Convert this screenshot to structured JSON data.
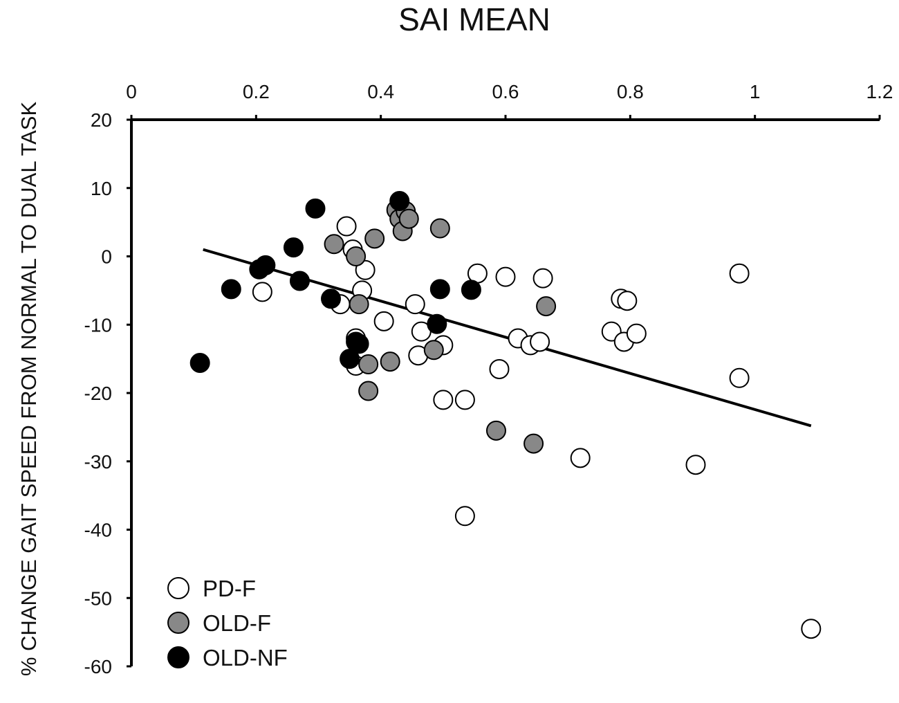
{
  "chart_data": {
    "type": "scatter",
    "title": "SAI MEAN",
    "xlabel": "",
    "ylabel": "% CHANGE GAIT SPEED FROM NORMAL  TO DUAL TASK",
    "xlim": [
      0,
      1.2
    ],
    "ylim": [
      -60,
      20
    ],
    "x_ticks": [
      "0",
      "0.2",
      "0.4",
      "0.6",
      "0.8",
      "1",
      "1.2"
    ],
    "y_ticks": [
      "20",
      "10",
      "0",
      "-10",
      "-20",
      "-30",
      "-40",
      "-50",
      "-60"
    ],
    "x_axis_position": "top",
    "series": [
      {
        "name": "PD-F",
        "color": "#ffffff",
        "points": [
          [
            0.21,
            -5.2
          ],
          [
            0.335,
            -7
          ],
          [
            0.345,
            4.4
          ],
          [
            0.355,
            1
          ],
          [
            0.36,
            -12
          ],
          [
            0.36,
            -16
          ],
          [
            0.37,
            -5
          ],
          [
            0.375,
            -2
          ],
          [
            0.405,
            -9.5
          ],
          [
            0.455,
            -7
          ],
          [
            0.46,
            -14.5
          ],
          [
            0.465,
            -11
          ],
          [
            0.5,
            -13
          ],
          [
            0.5,
            -21
          ],
          [
            0.535,
            -38
          ],
          [
            0.535,
            -21
          ],
          [
            0.555,
            -2.5
          ],
          [
            0.59,
            -16.5
          ],
          [
            0.6,
            -3
          ],
          [
            0.62,
            -12
          ],
          [
            0.64,
            -13
          ],
          [
            0.655,
            -12.5
          ],
          [
            0.66,
            -3.2
          ],
          [
            0.72,
            -29.5
          ],
          [
            0.77,
            -11
          ],
          [
            0.785,
            -6.2
          ],
          [
            0.79,
            -12.5
          ],
          [
            0.795,
            -6.5
          ],
          [
            0.81,
            -11.3
          ],
          [
            0.905,
            -30.5
          ],
          [
            0.975,
            -2.5
          ],
          [
            0.975,
            -17.8
          ],
          [
            1.09,
            -54.5
          ]
        ]
      },
      {
        "name": "OLD-F",
        "color": "#888888",
        "points": [
          [
            0.325,
            1.8
          ],
          [
            0.36,
            0
          ],
          [
            0.365,
            -7
          ],
          [
            0.38,
            -15.8
          ],
          [
            0.38,
            -19.7
          ],
          [
            0.39,
            2.6
          ],
          [
            0.415,
            -15.4
          ],
          [
            0.425,
            6.8
          ],
          [
            0.43,
            5.5
          ],
          [
            0.435,
            3.7
          ],
          [
            0.44,
            6.6
          ],
          [
            0.445,
            5.5
          ],
          [
            0.485,
            -13.7
          ],
          [
            0.495,
            4.1
          ],
          [
            0.585,
            -25.5
          ],
          [
            0.645,
            -27.4
          ],
          [
            0.665,
            -7.3
          ]
        ]
      },
      {
        "name": "OLD-NF",
        "color": "#000000",
        "points": [
          [
            0.11,
            -15.6
          ],
          [
            0.16,
            -4.8
          ],
          [
            0.205,
            -1.9
          ],
          [
            0.215,
            -1.3
          ],
          [
            0.26,
            1.3
          ],
          [
            0.27,
            -3.6
          ],
          [
            0.295,
            7
          ],
          [
            0.32,
            -6.2
          ],
          [
            0.35,
            -15
          ],
          [
            0.36,
            -12.5
          ],
          [
            0.365,
            -12.8
          ],
          [
            0.43,
            8.1
          ],
          [
            0.49,
            -9.9
          ],
          [
            0.495,
            -4.8
          ],
          [
            0.545,
            -4.9
          ]
        ]
      }
    ],
    "trendline": {
      "type": "linear",
      "x": [
        0.115,
        1.09
      ],
      "y": [
        1,
        -24.8
      ]
    },
    "legend": {
      "position": "bottom-left",
      "entries": [
        {
          "label": "PD-F",
          "color": "#ffffff"
        },
        {
          "label": "OLD-F",
          "color": "#888888"
        },
        {
          "label": "OLD-NF",
          "color": "#000000"
        }
      ]
    }
  }
}
